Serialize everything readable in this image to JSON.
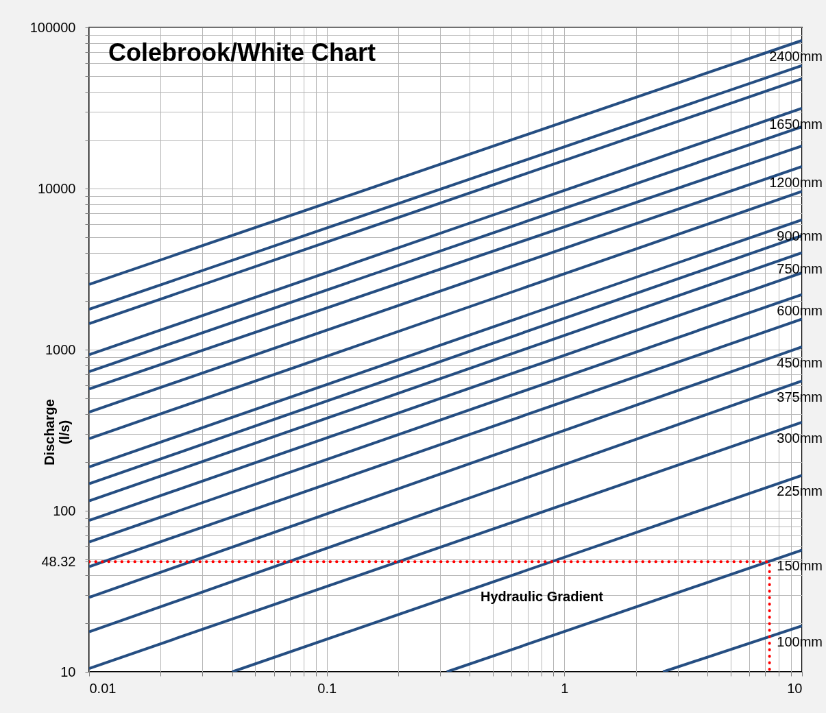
{
  "chart_data": {
    "type": "line",
    "title": "Colebrook/White Chart",
    "xlabel": "Hydraulic Gradient",
    "ylabel": "Discharge\n(l/s)",
    "log": "xy",
    "grid": true,
    "legend": false,
    "marker": "none",
    "line_style": "solid",
    "xlim": [
      0.01,
      10
    ],
    "ylim": [
      10,
      100000
    ],
    "xticks": [
      0.01,
      {
        "value": 0.02,
        "label": null
      },
      {
        "value": 0.03,
        "label": null
      },
      {
        "value": 0.04,
        "label": null
      },
      {
        "value": 0.05,
        "label": null
      },
      {
        "value": 0.06,
        "label": null
      },
      {
        "value": 0.07,
        "label": null
      },
      {
        "value": 0.08,
        "label": null
      },
      {
        "value": 0.09,
        "label": null
      },
      0.1,
      {
        "value": 0.2,
        "label": null
      },
      {
        "value": 0.3,
        "label": null
      },
      {
        "value": 0.4,
        "label": null
      },
      {
        "value": 0.5,
        "label": null
      },
      {
        "value": 0.6,
        "label": null
      },
      {
        "value": 0.7,
        "label": null
      },
      {
        "value": 0.8,
        "label": null
      },
      {
        "value": 0.9,
        "label": null
      },
      1,
      {
        "value": 2,
        "label": null
      },
      {
        "value": 3,
        "label": null
      },
      {
        "value": 4,
        "label": null
      },
      {
        "value": 5,
        "label": null
      },
      {
        "value": 6,
        "label": null
      },
      {
        "value": 7,
        "label": null
      },
      {
        "value": 8,
        "label": null
      },
      {
        "value": 9,
        "label": null
      },
      10
    ],
    "yticks": [
      10,
      {
        "value": 20,
        "label": null
      },
      {
        "value": 30,
        "label": null
      },
      {
        "value": 40,
        "label": null
      },
      48.32,
      {
        "value": 50,
        "label": null
      },
      {
        "value": 60,
        "label": null
      },
      {
        "value": 70,
        "label": null
      },
      {
        "value": 80,
        "label": null
      },
      {
        "value": 90,
        "label": null
      },
      100,
      {
        "value": 200,
        "label": null
      },
      {
        "value": 300,
        "label": null
      },
      {
        "value": 400,
        "label": null
      },
      {
        "value": 500,
        "label": null
      },
      {
        "value": 600,
        "label": null
      },
      {
        "value": 700,
        "label": null
      },
      {
        "value": 800,
        "label": null
      },
      {
        "value": 900,
        "label": null
      },
      1000,
      {
        "value": 2000,
        "label": null
      },
      {
        "value": 3000,
        "label": null
      },
      {
        "value": 4000,
        "label": null
      },
      {
        "value": 5000,
        "label": null
      },
      {
        "value": 6000,
        "label": null
      },
      {
        "value": 7000,
        "label": null
      },
      {
        "value": 8000,
        "label": null
      },
      {
        "value": 9000,
        "label": null
      },
      10000,
      {
        "value": 20000,
        "label": null
      },
      {
        "value": 30000,
        "label": null
      },
      {
        "value": 40000,
        "label": null
      },
      {
        "value": 50000,
        "label": null
      },
      {
        "value": 60000,
        "label": null
      },
      {
        "value": 70000,
        "label": null
      },
      {
        "value": 80000,
        "label": null
      },
      {
        "value": 90000,
        "label": null
      },
      100000
    ],
    "series": [
      {
        "name": "2400mm",
        "color": "#254e82",
        "x": [
          0.01,
          10
        ],
        "values": [
          2540,
          83000
        ]
      },
      {
        "color": "#254e82",
        "x": [
          0.01,
          10
        ],
        "values": [
          1780,
          58000
        ]
      },
      {
        "color": "#254e82",
        "x": [
          0.01,
          10
        ],
        "values": [
          1450,
          48000
        ]
      },
      {
        "name": "1650mm",
        "color": "#254e82",
        "x": [
          0.01,
          10
        ],
        "values": [
          930,
          31500
        ]
      },
      {
        "color": "#254e82",
        "x": [
          0.01,
          10
        ],
        "values": [
          730,
          24200
        ]
      },
      {
        "color": "#254e82",
        "x": [
          0.01,
          10
        ],
        "values": [
          570,
          18400
        ]
      },
      {
        "name": "1200mm",
        "color": "#254e82",
        "x": [
          0.01,
          10
        ],
        "values": [
          410,
          13700
        ]
      },
      {
        "color": "#254e82",
        "x": [
          0.01,
          10
        ],
        "values": [
          280,
          9600
        ]
      },
      {
        "name": "900mm",
        "color": "#254e82",
        "x": [
          0.01,
          10
        ],
        "values": [
          187,
          6400
        ]
      },
      {
        "color": "#254e82",
        "x": [
          0.01,
          10
        ],
        "values": [
          147,
          5100
        ]
      },
      {
        "name": "750mm",
        "color": "#254e82",
        "x": [
          0.01,
          10
        ],
        "values": [
          115,
          4000
        ]
      },
      {
        "color": "#254e82",
        "x": [
          0.01,
          10
        ],
        "values": [
          87,
          3000
        ]
      },
      {
        "name": "600mm",
        "color": "#254e82",
        "x": [
          0.01,
          10
        ],
        "values": [
          64,
          2200
        ]
      },
      {
        "color": "#254e82",
        "x": [
          0.01,
          10
        ],
        "values": [
          45,
          1550
        ]
      },
      {
        "name": "450mm",
        "color": "#254e82",
        "x": [
          0.01,
          10
        ],
        "values": [
          29,
          1040
        ]
      },
      {
        "name": "375mm",
        "color": "#254e82",
        "x": [
          0.01,
          10
        ],
        "values": [
          17.7,
          640
        ]
      },
      {
        "name": "300mm",
        "color": "#254e82",
        "x": [
          0.01,
          10
        ],
        "values": [
          10.5,
          354
        ]
      },
      {
        "name": "225mm",
        "color": "#254e82",
        "x": [
          0.04,
          10
        ],
        "values": [
          10,
          166
        ]
      },
      {
        "name": "150mm",
        "color": "#254e82",
        "x": [
          0.32,
          10
        ],
        "values": [
          10,
          57
        ]
      },
      {
        "name": "100mm",
        "color": "#254e82",
        "x": [
          2.6,
          10
        ],
        "values": [
          10,
          19.3
        ]
      },
      {
        "color": "#ff0000",
        "line_style": "dotted",
        "x": [
          0.01,
          7.3,
          7.3
        ],
        "values": [
          48.32,
          48.32,
          10
        ]
      }
    ]
  }
}
